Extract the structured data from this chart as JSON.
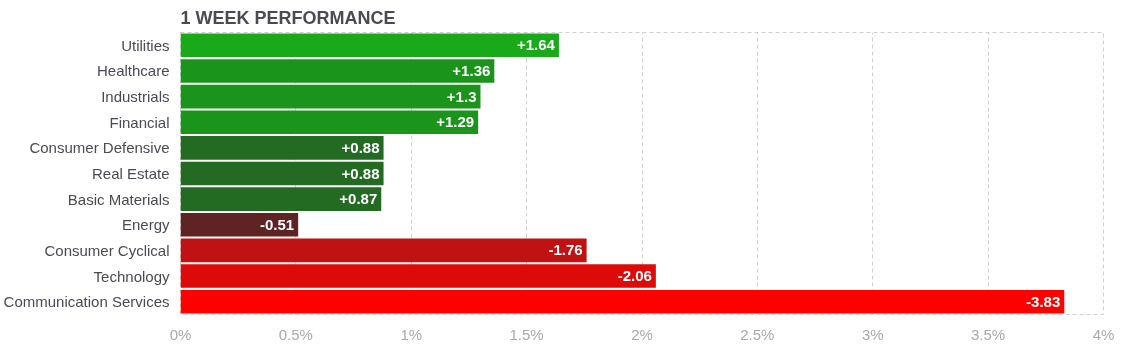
{
  "chart_data": {
    "type": "bar",
    "orientation": "horizontal",
    "title": "1 WEEK PERFORMANCE",
    "categories": [
      "Utilities",
      "Healthcare",
      "Industrials",
      "Financial",
      "Consumer Defensive",
      "Real Estate",
      "Basic Materials",
      "Energy",
      "Consumer Cyclical",
      "Technology",
      "Communication Services"
    ],
    "values": [
      1.64,
      1.36,
      1.3,
      1.29,
      0.88,
      0.88,
      0.87,
      -0.51,
      -1.76,
      -2.06,
      -3.83
    ],
    "base": [
      0,
      0,
      0,
      0,
      0,
      0,
      0,
      0.51,
      1.76,
      2.06,
      3.83
    ],
    "value_labels": [
      "+1.64",
      "+1.36",
      "+1.3",
      "+1.29",
      "+0.88",
      "+0.88",
      "+0.87",
      "-0.51",
      "-1.76",
      "-2.06",
      "-3.83"
    ],
    "colors": [
      "#19aa19",
      "#1b941b",
      "#1b941b",
      "#1b941b",
      "#236b23",
      "#236b23",
      "#236b23",
      "#5e2323",
      "#c01212",
      "#dd0a0a",
      "#ff0000"
    ],
    "xlim": [
      0,
      4
    ],
    "xticks": [
      {
        "value": 0,
        "label": "0%"
      },
      {
        "value": 0.5,
        "label": "0.5%"
      },
      {
        "value": 1,
        "label": "1%"
      },
      {
        "value": 1.5,
        "label": "1.5%"
      },
      {
        "value": 2,
        "label": "2%"
      },
      {
        "value": 2.5,
        "label": "2.5%"
      },
      {
        "value": 3,
        "label": "3%"
      },
      {
        "value": 3.5,
        "label": "3.5%"
      },
      {
        "value": 4,
        "label": "4%"
      }
    ],
    "grid": "x"
  }
}
